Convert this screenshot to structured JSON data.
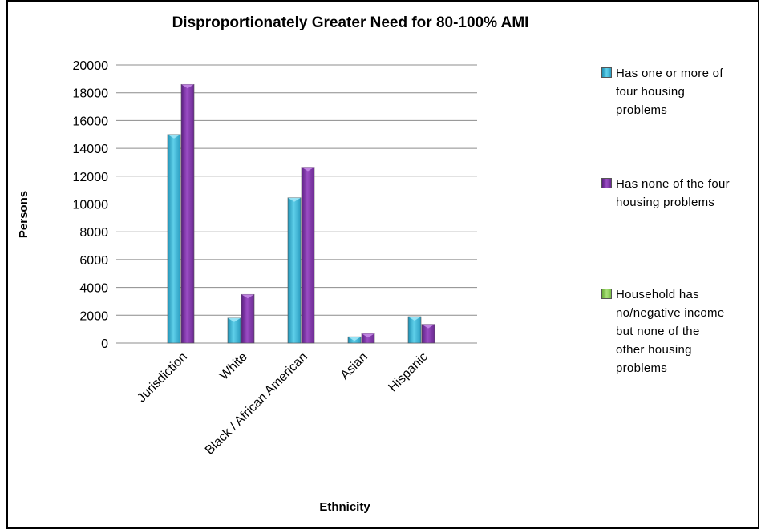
{
  "chart_data": {
    "type": "bar",
    "title": "Disproportionately Greater Need for 80-100% AMI",
    "xlabel": "Ethnicity",
    "ylabel": "Persons",
    "ylim": [
      0,
      20000
    ],
    "yticks": [
      0,
      2000,
      4000,
      6000,
      8000,
      10000,
      12000,
      14000,
      16000,
      18000,
      20000
    ],
    "grid": true,
    "legend_position": "right",
    "categories": [
      "Jurisdiction",
      "White",
      "Black / African American",
      "Asian",
      "Hispanic"
    ],
    "series": [
      {
        "name": "Has one or more of\nfour housing\nproblems",
        "color": "#3fb6d6",
        "values": [
          15000,
          1800,
          10450,
          450,
          1900
        ]
      },
      {
        "name": "Has none of the four\nhousing problems",
        "color": "#7a2fa0",
        "values": [
          18600,
          3500,
          12650,
          680,
          1350
        ]
      },
      {
        "name": "Household has\nno/negative income\nbut none of the\nother housing\nproblems",
        "color": "#8fcf5a",
        "values": [
          0,
          0,
          0,
          0,
          0
        ]
      }
    ]
  }
}
